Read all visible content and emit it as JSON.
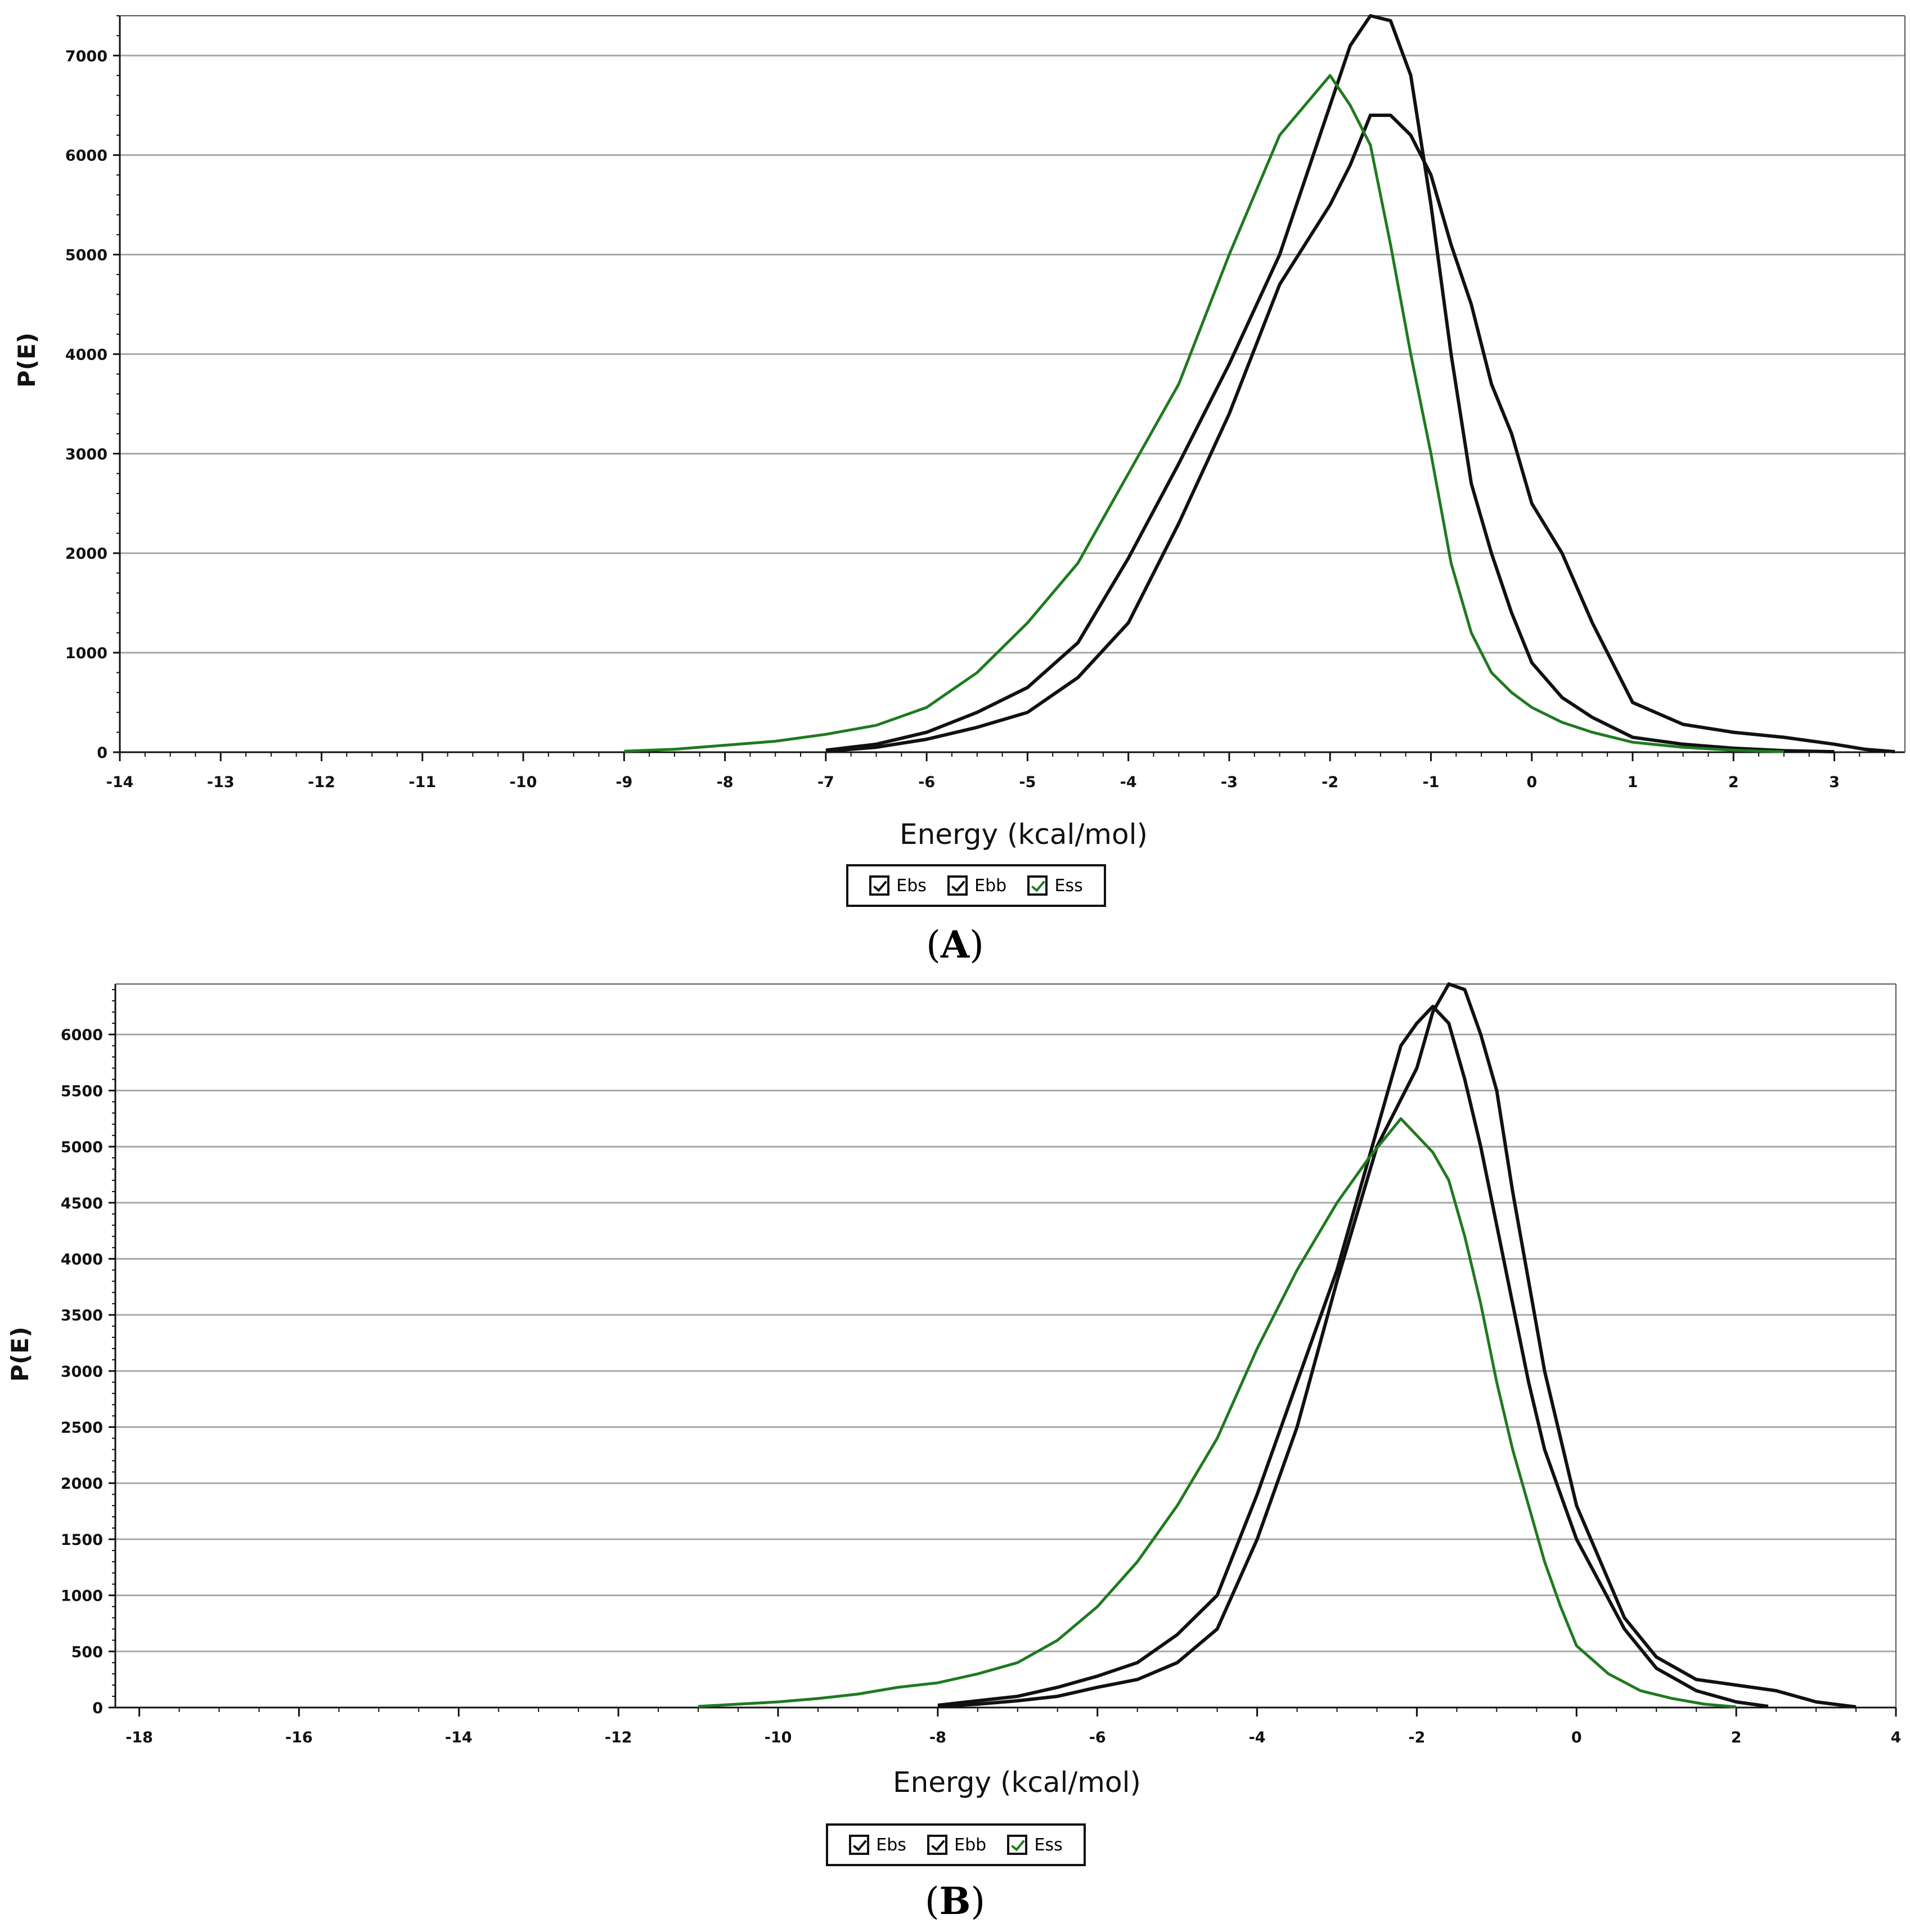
{
  "chart_data": [
    {
      "panel": "A",
      "type": "line",
      "caption_letter": "A",
      "xlabel": "Energy (kcal/mol)",
      "ylabel": "P(E)",
      "xlim": [
        -14,
        3.7
      ],
      "ylim": [
        0,
        7400
      ],
      "x_ticks": [
        -14,
        -13,
        -12,
        -11,
        -10,
        -9,
        -8,
        -7,
        -6,
        -5,
        -4,
        -3,
        -2,
        -1,
        0,
        1,
        2,
        3
      ],
      "y_ticks": [
        0,
        1000,
        2000,
        3000,
        4000,
        5000,
        6000,
        7000
      ],
      "grid": "horizontal",
      "legend": [
        {
          "label": "Ebs",
          "checked": true,
          "color": "#111111"
        },
        {
          "label": "Ebb",
          "checked": true,
          "color": "#111111"
        },
        {
          "label": "Ess",
          "checked": true,
          "color": "#1f7a1f"
        }
      ],
      "series": [
        {
          "name": "Ebs",
          "color": "#111111",
          "x": [
            -7.0,
            -6.5,
            -6.0,
            -5.5,
            -5.0,
            -4.5,
            -4.0,
            -3.5,
            -3.0,
            -2.5,
            -2.0,
            -1.8,
            -1.6,
            -1.4,
            -1.2,
            -1.0,
            -0.8,
            -0.6,
            -0.4,
            -0.2,
            0.0,
            0.3,
            0.6,
            1.0,
            1.5,
            2.0,
            2.5,
            3.0
          ],
          "y": [
            20,
            80,
            200,
            400,
            650,
            1100,
            1950,
            2900,
            3900,
            5000,
            6500,
            7100,
            7400,
            7350,
            6800,
            5500,
            4000,
            2700,
            2000,
            1400,
            900,
            550,
            350,
            150,
            80,
            40,
            15,
            5
          ]
        },
        {
          "name": "Ebb",
          "color": "#111111",
          "x": [
            -7.0,
            -6.5,
            -6.0,
            -5.5,
            -5.0,
            -4.5,
            -4.0,
            -3.5,
            -3.0,
            -2.5,
            -2.0,
            -1.8,
            -1.6,
            -1.4,
            -1.2,
            -1.0,
            -0.8,
            -0.6,
            -0.4,
            -0.2,
            0.0,
            0.3,
            0.6,
            1.0,
            1.5,
            2.0,
            2.5,
            3.0,
            3.3,
            3.6
          ],
          "y": [
            10,
            50,
            130,
            250,
            400,
            750,
            1300,
            2300,
            3400,
            4700,
            5500,
            5900,
            6400,
            6400,
            6200,
            5800,
            5100,
            4500,
            3700,
            3200,
            2500,
            2000,
            1300,
            500,
            280,
            200,
            150,
            80,
            30,
            5
          ]
        },
        {
          "name": "Ess",
          "color": "#1f7a1f",
          "x": [
            -9.0,
            -8.5,
            -8.0,
            -7.5,
            -7.0,
            -6.5,
            -6.0,
            -5.5,
            -5.0,
            -4.5,
            -4.0,
            -3.5,
            -3.0,
            -2.5,
            -2.0,
            -1.8,
            -1.6,
            -1.4,
            -1.2,
            -1.0,
            -0.8,
            -0.6,
            -0.4,
            -0.2,
            0.0,
            0.3,
            0.6,
            1.0,
            1.5,
            2.0,
            2.5
          ],
          "y": [
            10,
            30,
            70,
            110,
            180,
            270,
            450,
            800,
            1300,
            1900,
            2800,
            3700,
            5000,
            6200,
            6800,
            6500,
            6100,
            5100,
            4000,
            3000,
            1900,
            1200,
            800,
            600,
            450,
            300,
            200,
            100,
            50,
            20,
            5
          ]
        }
      ]
    },
    {
      "panel": "B",
      "type": "line",
      "caption_letter": "B",
      "xlabel": "Energy (kcal/mol)",
      "ylabel": "P(E)",
      "xlim": [
        -18.3,
        4
      ],
      "ylim": [
        0,
        6450
      ],
      "x_ticks": [
        -18,
        -16,
        -14,
        -12,
        -10,
        -8,
        -6,
        -4,
        -2,
        0,
        2,
        4
      ],
      "y_ticks": [
        0,
        500,
        1000,
        1500,
        2000,
        2500,
        3000,
        3500,
        4000,
        4500,
        5000,
        5500,
        6000
      ],
      "grid": "horizontal",
      "legend": [
        {
          "label": "Ebs",
          "checked": true,
          "color": "#111111"
        },
        {
          "label": "Ebb",
          "checked": true,
          "color": "#111111"
        },
        {
          "label": "Ess",
          "checked": true,
          "color": "#1f7a1f"
        }
      ],
      "series": [
        {
          "name": "Ebs",
          "color": "#111111",
          "x": [
            -8.0,
            -7.5,
            -7.0,
            -6.5,
            -6.0,
            -5.5,
            -5.0,
            -4.5,
            -4.0,
            -3.5,
            -3.0,
            -2.6,
            -2.2,
            -2.0,
            -1.8,
            -1.6,
            -1.4,
            -1.2,
            -1.0,
            -0.8,
            -0.6,
            -0.4,
            -0.2,
            0.0,
            0.3,
            0.6,
            1.0,
            1.5,
            2.0,
            2.4
          ],
          "y": [
            20,
            60,
            100,
            180,
            280,
            400,
            650,
            1000,
            1900,
            2900,
            3900,
            4900,
            5900,
            6100,
            6250,
            6100,
            5600,
            5000,
            4300,
            3600,
            2900,
            2300,
            1900,
            1500,
            1100,
            700,
            350,
            150,
            50,
            10
          ]
        },
        {
          "name": "Ebb",
          "color": "#111111",
          "x": [
            -8.0,
            -7.5,
            -7.0,
            -6.5,
            -6.0,
            -5.5,
            -5.0,
            -4.5,
            -4.0,
            -3.5,
            -3.0,
            -2.5,
            -2.0,
            -1.8,
            -1.6,
            -1.4,
            -1.2,
            -1.0,
            -0.8,
            -0.6,
            -0.4,
            -0.2,
            0.0,
            0.3,
            0.6,
            1.0,
            1.5,
            2.0,
            2.5,
            3.0,
            3.5
          ],
          "y": [
            10,
            30,
            60,
            100,
            180,
            250,
            400,
            700,
            1500,
            2500,
            3800,
            5000,
            5700,
            6200,
            6450,
            6400,
            6000,
            5500,
            4600,
            3800,
            3000,
            2400,
            1800,
            1300,
            800,
            450,
            250,
            200,
            150,
            50,
            5
          ]
        },
        {
          "name": "Ess",
          "color": "#1f7a1f",
          "x": [
            -11.0,
            -10.5,
            -10.0,
            -9.5,
            -9.0,
            -8.5,
            -8.0,
            -7.5,
            -7.0,
            -6.5,
            -6.0,
            -5.5,
            -5.0,
            -4.5,
            -4.0,
            -3.5,
            -3.0,
            -2.6,
            -2.2,
            -2.0,
            -1.8,
            -1.6,
            -1.4,
            -1.2,
            -1.0,
            -0.8,
            -0.6,
            -0.4,
            -0.2,
            0.0,
            0.4,
            0.8,
            1.2,
            1.6,
            2.0
          ],
          "y": [
            10,
            30,
            50,
            80,
            120,
            180,
            220,
            300,
            400,
            600,
            900,
            1300,
            1800,
            2400,
            3200,
            3900,
            4500,
            4900,
            5250,
            5100,
            4950,
            4700,
            4200,
            3600,
            2900,
            2300,
            1800,
            1300,
            900,
            550,
            300,
            150,
            80,
            30,
            5
          ]
        }
      ]
    }
  ]
}
